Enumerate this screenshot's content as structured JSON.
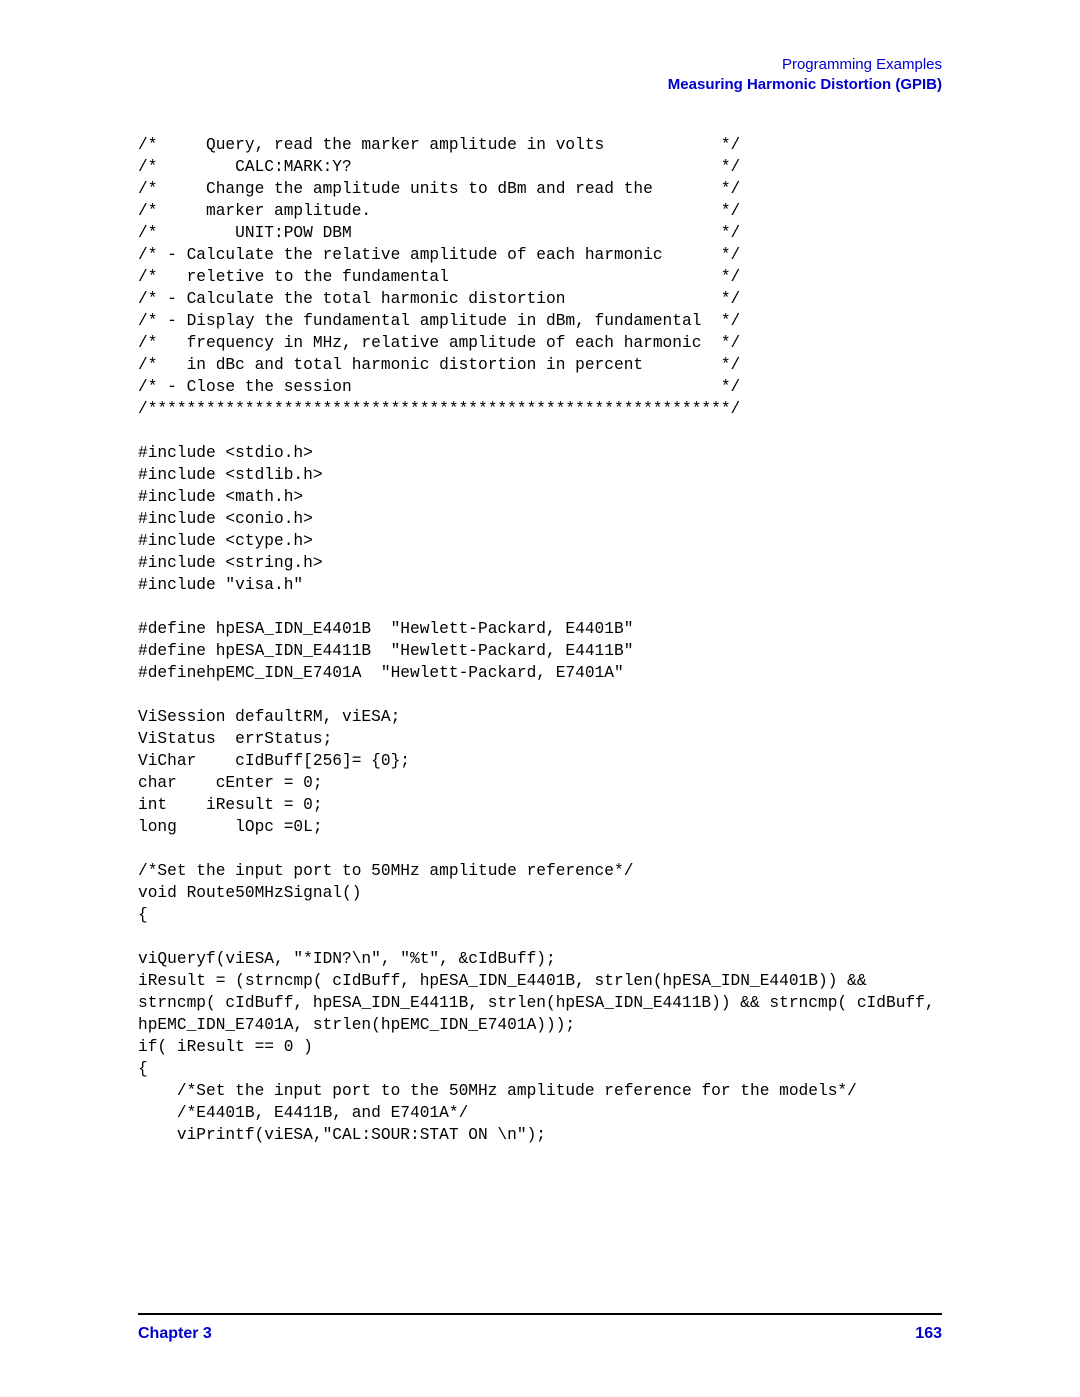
{
  "header": {
    "line1": "Programming Examples",
    "line2": "Measuring Harmonic Distortion (GPIB)"
  },
  "code": {
    "text": "/*     Query, read the marker amplitude in volts            */\n/*        CALC:MARK:Y?                                      */\n/*     Change the amplitude units to dBm and read the       */\n/*     marker amplitude.                                    */\n/*        UNIT:POW DBM                                      */\n/* - Calculate the relative amplitude of each harmonic      */\n/*   reletive to the fundamental                            */\n/* - Calculate the total harmonic distortion                */\n/* - Display the fundamental amplitude in dBm, fundamental  */\n/*   frequency in MHz, relative amplitude of each harmonic  */\n/*   in dBc and total harmonic distortion in percent        */\n/* - Close the session                                      */\n/************************************************************/\n\n#include <stdio.h>\n#include <stdlib.h>\n#include <math.h>\n#include <conio.h>\n#include <ctype.h>\n#include <string.h>\n#include \"visa.h\"\n\n#define hpESA_IDN_E4401B  \"Hewlett-Packard, E4401B\"\n#define hpESA_IDN_E4411B  \"Hewlett-Packard, E4411B\"\n#definehpEMC_IDN_E7401A  \"Hewlett-Packard, E7401A\"\n\nViSession defaultRM, viESA;\nViStatus  errStatus;\nViChar    cIdBuff[256]= {0};\nchar    cEnter = 0;\nint    iResult = 0;\nlong      lOpc =0L;\n\n/*Set the input port to 50MHz amplitude reference*/\nvoid Route50MHzSignal()\n{\n\nviQueryf(viESA, \"*IDN?\\n\", \"%t\", &cIdBuff);\niResult = (strncmp( cIdBuff, hpESA_IDN_E4401B, strlen(hpESA_IDN_E4401B)) && \nstrncmp( cIdBuff, hpESA_IDN_E4411B, strlen(hpESA_IDN_E4411B)) && strncmp( cIdBuff, \nhpEMC_IDN_E7401A, strlen(hpEMC_IDN_E7401A)));\nif( iResult == 0 )\n{\n    /*Set the input port to the 50MHz amplitude reference for the models*/\n    /*E4401B, E4411B, and E7401A*/\n    viPrintf(viESA,\"CAL:SOUR:STAT ON \\n\");"
  },
  "footer": {
    "chapter": "Chapter 3",
    "page_number": "163"
  }
}
